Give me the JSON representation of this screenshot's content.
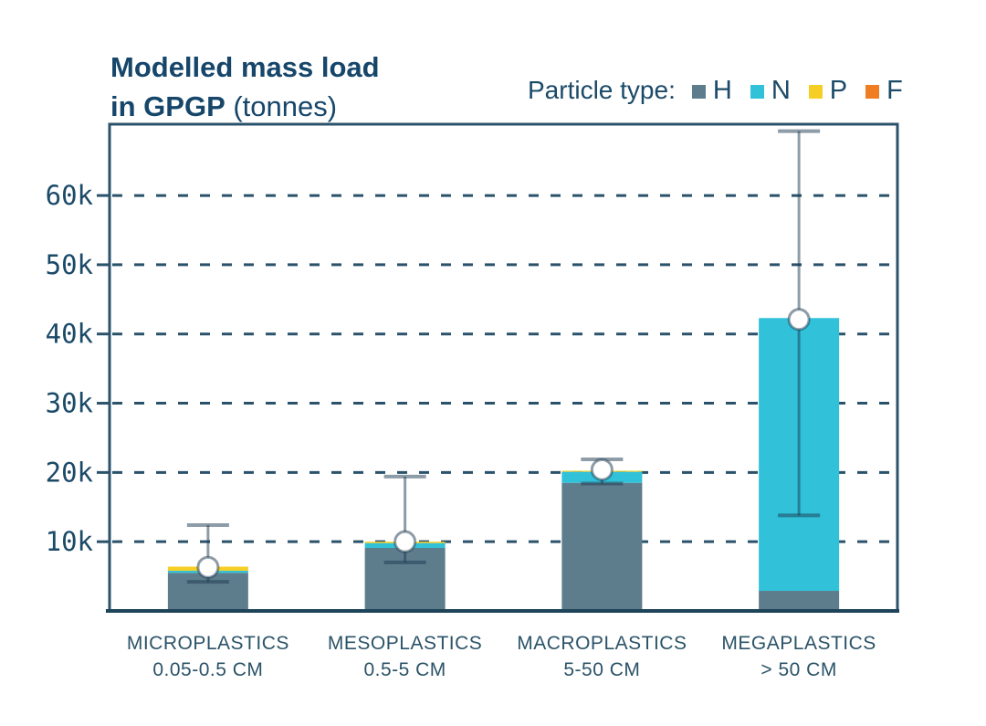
{
  "title": {
    "line1": "Modelled mass load",
    "line2_bold": "in GPGP",
    "line2_regular": " (tonnes)"
  },
  "legend": {
    "label": "Particle type:",
    "position": "top-right",
    "items": [
      {
        "label": "H",
        "color": "#5e7d8c"
      },
      {
        "label": "N",
        "color": "#31c1d9"
      },
      {
        "label": "P",
        "color": "#f6cf26"
      },
      {
        "label": "F",
        "color": "#ef7d23"
      }
    ]
  },
  "colors": {
    "text_navy": "#1b4a68",
    "grid_navy": "#2b526b",
    "axis_navy": "#1e4459",
    "xlabel_navy": "#2b5368",
    "error_bar": "rgba(27,58,80,0.5)",
    "marker_fill": "#ffffff"
  },
  "chart_data": {
    "type": "bar",
    "stacked": true,
    "title": "Modelled mass load in GPGP (tonnes)",
    "unit": "tonnes",
    "grid": "horizontal-dashed",
    "legend_position": "top-right",
    "ylim": [
      0,
      70300
    ],
    "yticks": [
      {
        "value": 10000,
        "label": "10k"
      },
      {
        "value": 20000,
        "label": "20k"
      },
      {
        "value": 30000,
        "label": "30k"
      },
      {
        "value": 40000,
        "label": "40k"
      },
      {
        "value": 50000,
        "label": "50k"
      },
      {
        "value": 60000,
        "label": "60k"
      }
    ],
    "categories": [
      {
        "line1": "MICROPLASTICS",
        "line2": "0.05-0.5 CM"
      },
      {
        "line1": "MESOPLASTICS",
        "line2": "0.5-5 CM"
      },
      {
        "line1": "MACROPLASTICS",
        "line2": "5-50 CM"
      },
      {
        "line1": "MEGAPLASTICS",
        "line2": "> 50 CM"
      }
    ],
    "series": [
      {
        "name": "H",
        "color": "#5e7d8c",
        "values": [
          5500,
          9100,
          18500,
          2900
        ]
      },
      {
        "name": "N",
        "color": "#31c1d9",
        "values": [
          300,
          700,
          1600,
          39400
        ]
      },
      {
        "name": "P",
        "color": "#f6cf26",
        "values": [
          600,
          200,
          150,
          0
        ]
      },
      {
        "name": "F",
        "color": "#ef7d23",
        "values": [
          0,
          0,
          0,
          0
        ]
      }
    ],
    "totals": [
      6400,
      10000,
      20250,
      42300
    ],
    "error_bars": [
      {
        "low": 4200,
        "mid": 6300,
        "high": 12400
      },
      {
        "low": 7000,
        "mid": 10000,
        "high": 19400
      },
      {
        "low": 18400,
        "mid": 20400,
        "high": 21900
      },
      {
        "low": 13800,
        "mid": 42100,
        "high": 69300
      }
    ]
  }
}
